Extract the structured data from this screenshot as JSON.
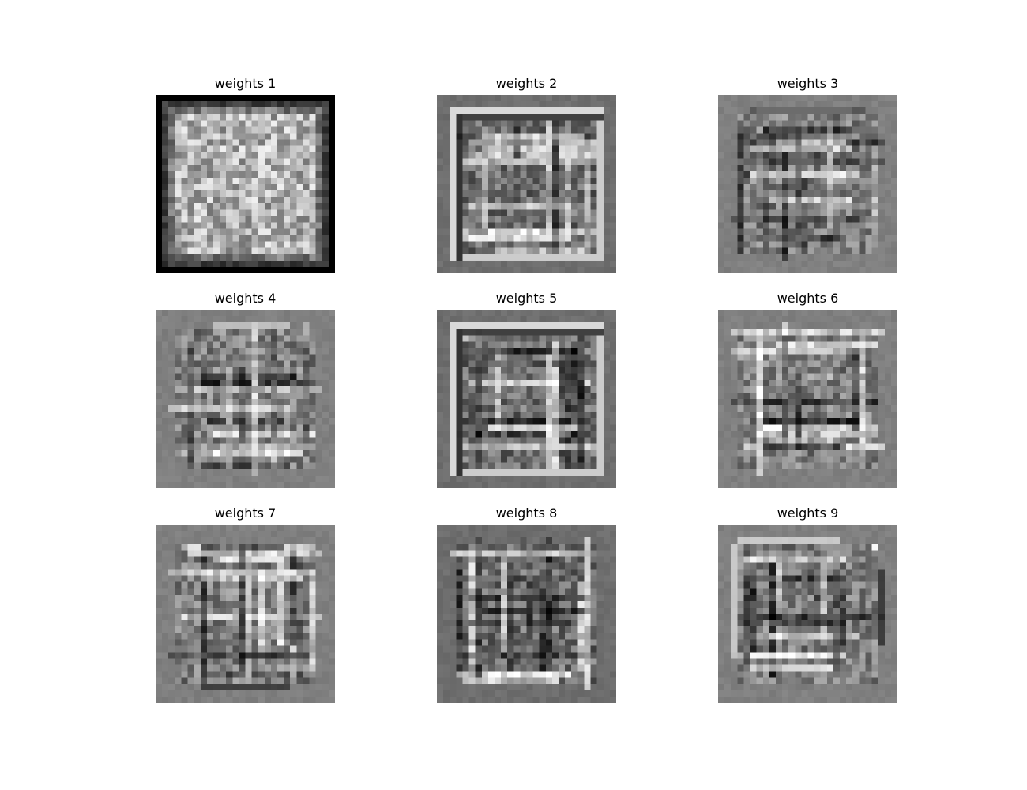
{
  "chart_data": [
    {
      "type": "heatmap",
      "title": "weights 1",
      "colormap": "gray",
      "grid": "off",
      "axes": "off",
      "shape": [
        28,
        28
      ],
      "pattern": "bright-center-dark-border"
    },
    {
      "type": "heatmap",
      "title": "weights 2",
      "colormap": "gray",
      "grid": "off",
      "axes": "off",
      "shape": [
        28,
        28
      ],
      "pattern": "frame-and-strokes"
    },
    {
      "type": "heatmap",
      "title": "weights 3",
      "colormap": "gray",
      "grid": "off",
      "axes": "off",
      "shape": [
        28,
        28
      ],
      "pattern": "strokes"
    },
    {
      "type": "heatmap",
      "title": "weights 4",
      "colormap": "gray",
      "grid": "off",
      "axes": "off",
      "shape": [
        28,
        28
      ],
      "pattern": "strokes"
    },
    {
      "type": "heatmap",
      "title": "weights 5",
      "colormap": "gray",
      "grid": "off",
      "axes": "off",
      "shape": [
        28,
        28
      ],
      "pattern": "frame-and-strokes"
    },
    {
      "type": "heatmap",
      "title": "weights 6",
      "colormap": "gray",
      "grid": "off",
      "axes": "off",
      "shape": [
        28,
        28
      ],
      "pattern": "strokes"
    },
    {
      "type": "heatmap",
      "title": "weights 7",
      "colormap": "gray",
      "grid": "off",
      "axes": "off",
      "shape": [
        28,
        28
      ],
      "pattern": "strokes"
    },
    {
      "type": "heatmap",
      "title": "weights 8",
      "colormap": "gray",
      "grid": "off",
      "axes": "off",
      "shape": [
        28,
        28
      ],
      "pattern": "strokes"
    },
    {
      "type": "heatmap",
      "title": "weights 9",
      "colormap": "gray",
      "grid": "off",
      "axes": "off",
      "shape": [
        28,
        28
      ],
      "pattern": "strokes"
    }
  ]
}
